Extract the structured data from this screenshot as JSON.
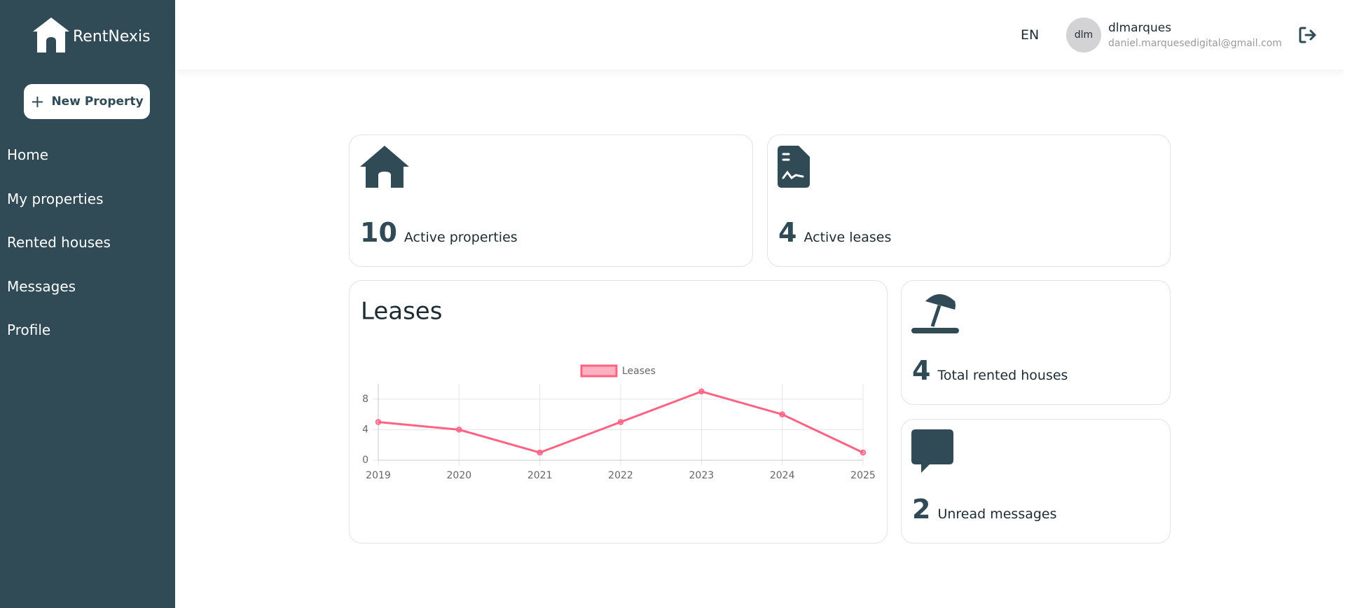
{
  "sidebar": {
    "brand": "RentNexis",
    "new_property": "New Property",
    "nav": [
      "Home",
      "My properties",
      "Rented houses",
      "Messages",
      "Profile"
    ]
  },
  "header": {
    "language": "EN",
    "avatar": "dlm",
    "username": "dlmarques",
    "email": "daniel.marquesedigital@gmail.com"
  },
  "stats": [
    {
      "value": "10",
      "label": "Active properties"
    },
    {
      "value": "4",
      "label": "Active leases"
    },
    {
      "value": "4",
      "label": "Total rented houses"
    },
    {
      "value": "2",
      "label": "Unread messages"
    }
  ],
  "chart_data": {
    "type": "line",
    "title": "Leases",
    "categories": [
      "2019",
      "2020",
      "2021",
      "2022",
      "2023",
      "2024",
      "2025"
    ],
    "series": [
      {
        "name": "Leases",
        "color": "#ff6384",
        "values": [
          5,
          4,
          1,
          5,
          9,
          6,
          1
        ]
      }
    ],
    "ylim": [
      0,
      10
    ],
    "yticks": [
      0,
      4,
      8
    ],
    "grid": true,
    "legend": "top"
  }
}
